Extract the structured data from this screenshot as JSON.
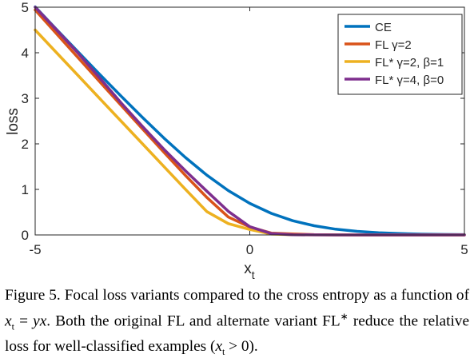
{
  "chart_data": {
    "type": "line",
    "xlabel": "x",
    "xlabel_sub": "t",
    "ylabel": "loss",
    "xlim": [
      -5,
      5
    ],
    "ylim": [
      0,
      5
    ],
    "xticks": [
      -5,
      0,
      5
    ],
    "yticks": [
      0,
      1,
      2,
      3,
      4,
      5
    ],
    "grid": false,
    "legend_position": "top-right",
    "x": [
      -5,
      -4.5,
      -4,
      -3.5,
      -3,
      -2.5,
      -2,
      -1.5,
      -1,
      -0.5,
      0,
      0.5,
      1,
      1.5,
      2,
      2.5,
      3,
      3.5,
      4,
      4.5,
      5
    ],
    "series": [
      {
        "name": "CE",
        "color": "#0072bd",
        "values": [
          5.007,
          4.511,
          4.018,
          3.53,
          3.049,
          2.579,
          2.127,
          1.701,
          1.313,
          0.974,
          0.693,
          0.474,
          0.313,
          0.201,
          0.127,
          0.079,
          0.049,
          0.03,
          0.018,
          0.011,
          0.007
        ]
      },
      {
        "name": "FL γ=2",
        "color": "#d95319",
        "values": [
          4.94,
          4.416,
          3.892,
          3.369,
          2.848,
          2.328,
          1.814,
          1.308,
          0.823,
          0.393,
          0.173,
          0.041,
          0.023,
          0.007,
          0.002,
          0.0005,
          0.0001,
          0.0,
          0.0,
          0.0,
          0.0
        ]
      },
      {
        "name": "FL* γ=2, β=1",
        "color": "#edb120",
        "values": [
          4.5,
          4.0,
          3.5,
          3.0,
          2.5,
          2.0,
          1.501,
          1.003,
          0.513,
          0.25,
          0.12,
          0.02,
          0.004,
          0.001,
          0.0,
          0.0,
          0.0,
          0.0,
          0.0,
          0.0,
          0.0
        ]
      },
      {
        "name": "FL* γ=4, β=0",
        "color": "#7e2f8e",
        "values": [
          5.0,
          4.5,
          3.99,
          3.45,
          2.9,
          2.38,
          1.88,
          1.41,
          0.96,
          0.52,
          0.18,
          0.03,
          0.005,
          0.001,
          0.0,
          0.0,
          0.0,
          0.0,
          0.0,
          0.0,
          0.0
        ]
      }
    ]
  },
  "legend": [
    {
      "label": "CE",
      "color": "#0072bd"
    },
    {
      "label": "FL γ=2",
      "color": "#d95319"
    },
    {
      "label": "FL* γ=2, β=1",
      "color": "#edb120"
    },
    {
      "label": "FL* γ=4, β=0",
      "color": "#7e2f8e"
    }
  ],
  "caption": {
    "label": "Figure 5.",
    "text1": "Focal loss variants compared to the cross entropy as a function of",
    "eq_lhs": "x",
    "eq_sub": "t",
    "eq_mid": " = ",
    "eq_rhs": "yx",
    "text2": ". Both the original FL and alternate variant FL",
    "sup": "∗",
    "text3": " reduce the relative loss for well-classified examples (",
    "cond_x": "x",
    "cond_sub": "t",
    "cond_rest": " > 0).",
    "text_end": ""
  }
}
